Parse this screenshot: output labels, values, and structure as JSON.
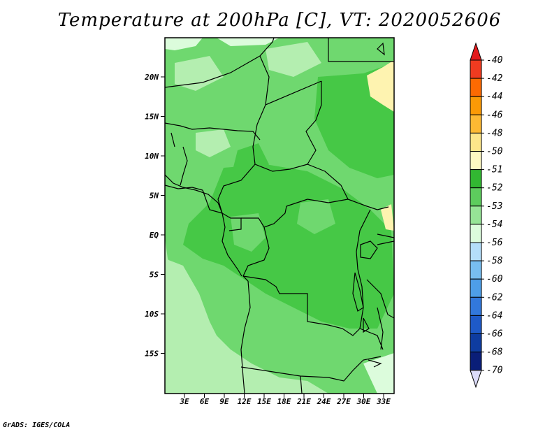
{
  "title": "Temperature at 200hPa [C], VT: 2020052606",
  "credit": "GrADS: IGES/COLA",
  "map": {
    "lat_labels": [
      {
        "lat": 20,
        "text": "20N"
      },
      {
        "lat": 15,
        "text": "15N"
      },
      {
        "lat": 10,
        "text": "10N"
      },
      {
        "lat": 5,
        "text": "5N"
      },
      {
        "lat": 0,
        "text": "EQ"
      },
      {
        "lat": -5,
        "text": "5S"
      },
      {
        "lat": -10,
        "text": "10S"
      },
      {
        "lat": -15,
        "text": "15S"
      }
    ],
    "lon_labels": [
      {
        "lon": 3,
        "text": "3E"
      },
      {
        "lon": 6,
        "text": "6E"
      },
      {
        "lon": 9,
        "text": "9E"
      },
      {
        "lon": 12,
        "text": "12E"
      },
      {
        "lon": 15,
        "text": "15E"
      },
      {
        "lon": 18,
        "text": "18E"
      },
      {
        "lon": 21,
        "text": "21E"
      },
      {
        "lon": 24,
        "text": "24E"
      },
      {
        "lon": 27,
        "text": "27E"
      },
      {
        "lon": 30,
        "text": "30E"
      },
      {
        "lon": 33,
        "text": "33E"
      }
    ]
  },
  "colorbar": {
    "labels": [
      "-40",
      "-42",
      "-44",
      "-46",
      "-48",
      "-50",
      "-51",
      "-52",
      "-53",
      "-54",
      "-56",
      "-58",
      "-60",
      "-62",
      "-64",
      "-66",
      "-68",
      "-70"
    ],
    "colors": [
      "#e31a1c",
      "#f03b20",
      "#fd6a02",
      "#fb9a06",
      "#fdb933",
      "#fde68a",
      "#fef9c2",
      "#32b832",
      "#5dcc5d",
      "#96e496",
      "#dcfcdc",
      "#b4defa",
      "#78bef0",
      "#4e9ee8",
      "#3278dc",
      "#1e5ac8",
      "#0e3ca0",
      "#0a1e78",
      "#dcdcfa"
    ]
  }
}
